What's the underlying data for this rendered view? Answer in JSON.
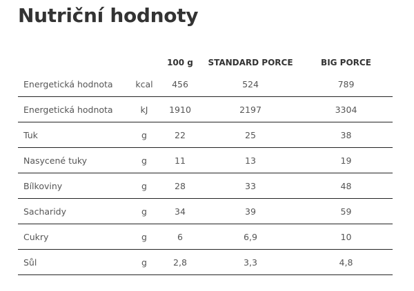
{
  "title": "Nutriční hodnoty",
  "table": {
    "headers": [
      "",
      "",
      "100 g",
      "STANDARD PORCE",
      "BIG PORCE"
    ],
    "rows": [
      {
        "label": "Energetická hodnota",
        "unit": "kcal",
        "per100": "456",
        "standard": "524",
        "big": "789"
      },
      {
        "label": "Energetická hodnota",
        "unit": "kJ",
        "per100": "1910",
        "standard": "2197",
        "big": "3304"
      },
      {
        "label": "Tuk",
        "unit": "g",
        "per100": "22",
        "standard": "25",
        "big": "38"
      },
      {
        "label": "Nasycené tuky",
        "unit": "g",
        "per100": "11",
        "standard": "13",
        "big": "19"
      },
      {
        "label": "Bílkoviny",
        "unit": "g",
        "per100": "28",
        "standard": "33",
        "big": "48"
      },
      {
        "label": "Sacharidy",
        "unit": "g",
        "per100": "34",
        "standard": "39",
        "big": "59"
      },
      {
        "label": "Cukry",
        "unit": "g",
        "per100": "6",
        "standard": "6,9",
        "big": "10"
      },
      {
        "label": "Sůl",
        "unit": "g",
        "per100": "2,8",
        "standard": "3,3",
        "big": "4,8"
      }
    ]
  }
}
